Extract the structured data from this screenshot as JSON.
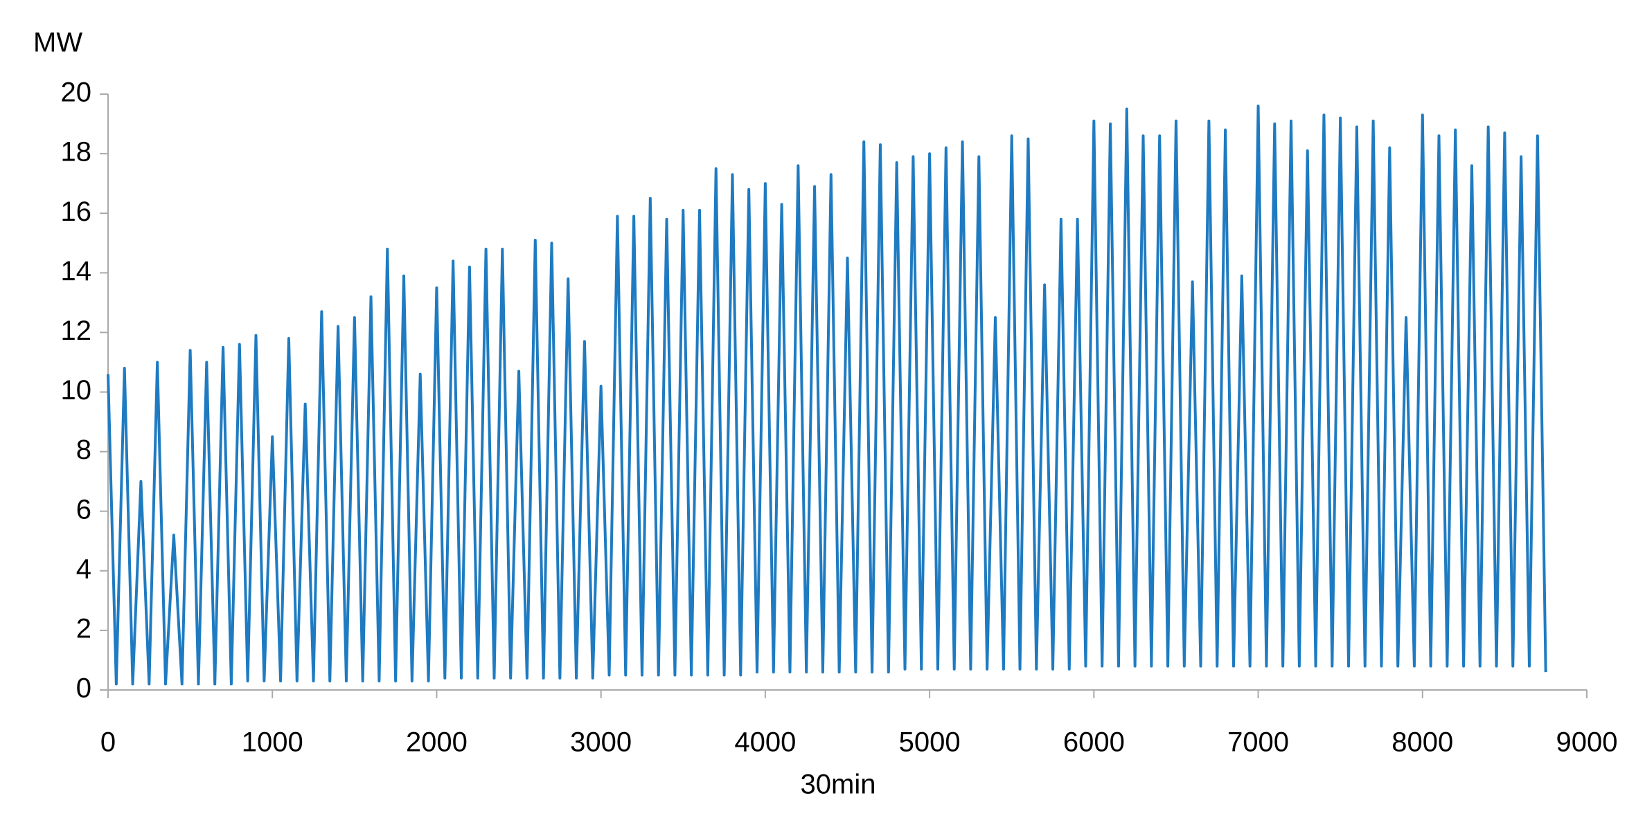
{
  "chart_data": {
    "type": "line",
    "ylabel": "MW",
    "xlabel": "30min",
    "xlim": [
      0,
      9000
    ],
    "xticks": [
      0,
      1000,
      2000,
      3000,
      4000,
      5000,
      6000,
      7000,
      8000,
      9000
    ],
    "ylim": [
      0,
      20
    ],
    "yticks": [
      0,
      2,
      4,
      6,
      8,
      10,
      12,
      14,
      16,
      18,
      20
    ],
    "x": [
      0,
      50,
      100,
      150,
      200,
      250,
      300,
      350,
      400,
      450,
      500,
      550,
      600,
      650,
      700,
      750,
      800,
      850,
      900,
      950,
      1000,
      1050,
      1100,
      1150,
      1200,
      1250,
      1300,
      1350,
      1400,
      1450,
      1500,
      1550,
      1600,
      1650,
      1700,
      1750,
      1800,
      1850,
      1900,
      1950,
      2000,
      2050,
      2100,
      2150,
      2200,
      2250,
      2300,
      2350,
      2400,
      2450,
      2500,
      2550,
      2600,
      2650,
      2700,
      2750,
      2800,
      2850,
      2900,
      2950,
      3000,
      3050,
      3100,
      3150,
      3200,
      3250,
      3300,
      3350,
      3400,
      3450,
      3500,
      3550,
      3600,
      3650,
      3700,
      3750,
      3800,
      3850,
      3900,
      3950,
      4000,
      4050,
      4100,
      4150,
      4200,
      4250,
      4300,
      4350,
      4400,
      4450,
      4500,
      4550,
      4600,
      4650,
      4700,
      4750,
      4800,
      4850,
      4900,
      4950,
      5000,
      5050,
      5100,
      5150,
      5200,
      5250,
      5300,
      5350,
      5400,
      5450,
      5500,
      5550,
      5600,
      5650,
      5700,
      5750,
      5800,
      5850,
      5900,
      5950,
      6000,
      6050,
      6100,
      6150,
      6200,
      6250,
      6300,
      6350,
      6400,
      6450,
      6500,
      6550,
      6600,
      6650,
      6700,
      6750,
      6800,
      6850,
      6900,
      6950,
      7000,
      7050,
      7100,
      7150,
      7200,
      7250,
      7300,
      7350,
      7400,
      7450,
      7500,
      7550,
      7600,
      7650,
      7700,
      7750,
      7800,
      7850,
      7900,
      7950,
      8000,
      8050,
      8100,
      8150,
      8200,
      8250,
      8300,
      8350,
      8400,
      8450,
      8500,
      8550,
      8600,
      8650,
      8700,
      8750
    ],
    "series": [
      {
        "color": "#1f7bc1",
        "values": [
          10.6,
          0.2,
          10.8,
          0.2,
          7,
          0.2,
          11,
          0.2,
          5.2,
          0.2,
          11.4,
          0.2,
          11,
          0.2,
          11.5,
          0.2,
          11.6,
          0.3,
          11.9,
          0.3,
          8.5,
          0.3,
          11.8,
          0.3,
          9.6,
          0.3,
          12.7,
          0.3,
          12.2,
          0.3,
          12.5,
          0.3,
          13.2,
          0.3,
          14.8,
          0.3,
          13.9,
          0.3,
          10.6,
          0.3,
          13.5,
          0.4,
          14.4,
          0.4,
          14.2,
          0.4,
          14.8,
          0.4,
          14.8,
          0.4,
          10.7,
          0.4,
          15.1,
          0.4,
          15,
          0.4,
          13.8,
          0.4,
          11.7,
          0.4,
          10.2,
          0.5,
          15.9,
          0.5,
          15.9,
          0.5,
          16.5,
          0.5,
          15.8,
          0.5,
          16.1,
          0.5,
          16.1,
          0.5,
          17.5,
          0.5,
          17.3,
          0.5,
          16.8,
          0.6,
          17,
          0.6,
          16.3,
          0.6,
          17.6,
          0.6,
          16.9,
          0.6,
          17.3,
          0.6,
          14.5,
          0.6,
          18.4,
          0.6,
          18.3,
          0.6,
          17.7,
          0.7,
          17.9,
          0.7,
          18,
          0.7,
          18.2,
          0.7,
          18.4,
          0.7,
          17.9,
          0.7,
          12.5,
          0.7,
          18.6,
          0.7,
          18.5,
          0.7,
          13.6,
          0.7,
          15.8,
          0.7,
          15.8,
          0.8,
          19.1,
          0.8,
          19,
          0.8,
          19.5,
          0.8,
          18.6,
          0.8,
          18.6,
          0.8,
          19.1,
          0.8,
          13.7,
          0.8,
          19.1,
          0.8,
          18.8,
          0.8,
          13.9,
          0.8,
          19.6,
          0.8,
          19,
          0.8,
          19.1,
          0.8,
          18.1,
          0.8,
          19.3,
          0.8,
          19.2,
          0.8,
          18.9,
          0.8,
          19.1,
          0.8,
          18.2,
          0.8,
          12.5,
          0.8,
          19.3,
          0.8,
          18.6,
          0.8,
          18.8,
          0.8,
          17.6,
          0.8,
          18.9,
          0.8,
          18.7,
          0.8,
          17.9,
          0.8,
          18.6,
          0.6
        ]
      }
    ]
  }
}
